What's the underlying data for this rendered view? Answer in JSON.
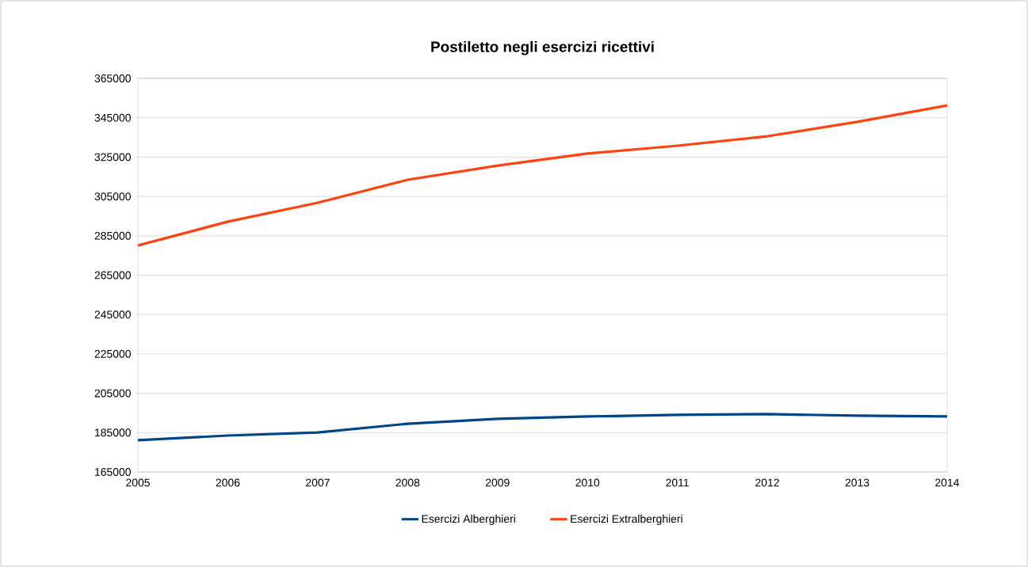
{
  "chart_data": {
    "type": "line",
    "title": "Postiletto negli esercizi ricettivi",
    "x": [
      2005,
      2006,
      2007,
      2008,
      2009,
      2010,
      2011,
      2012,
      2013,
      2014
    ],
    "series": [
      {
        "name": "Esercizi Alberghieri",
        "color": "#004586",
        "values": [
          181100,
          183500,
          185100,
          189500,
          192000,
          193200,
          194000,
          194400,
          193600,
          193200
        ]
      },
      {
        "name": "Esercizi Extralberghieri",
        "color": "#ff420e",
        "values": [
          280100,
          292200,
          301800,
          313500,
          320700,
          326800,
          330800,
          335600,
          342900,
          351300
        ]
      }
    ],
    "xlim": [
      2005,
      2014
    ],
    "xticks": [
      2005,
      2006,
      2007,
      2008,
      2009,
      2010,
      2011,
      2012,
      2013,
      2014
    ],
    "ylim": [
      165000,
      365000
    ],
    "yticks": [
      165000,
      185000,
      205000,
      225000,
      245000,
      265000,
      285000,
      305000,
      325000,
      345000,
      365000
    ],
    "grid": "y",
    "legend": "bottom",
    "marker": "none",
    "line_style": "solid"
  }
}
